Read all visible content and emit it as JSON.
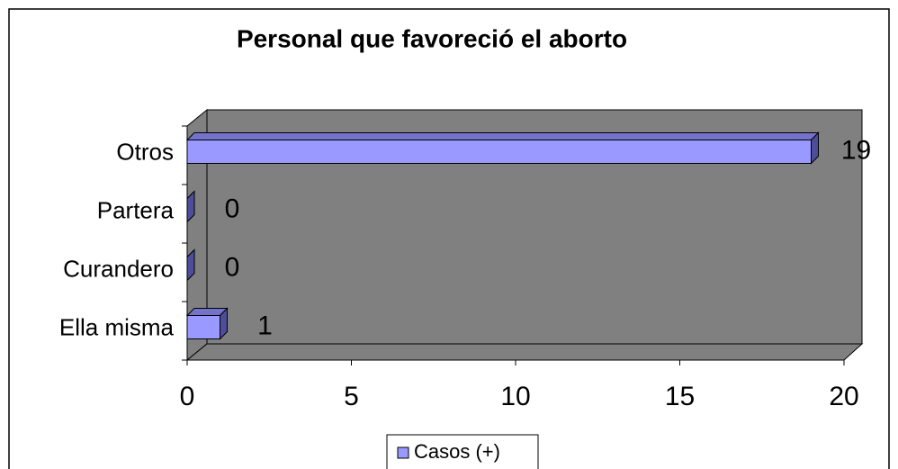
{
  "chart_data": {
    "type": "bar",
    "orientation": "horizontal",
    "title": "Personal que favoreció el aborto",
    "categories": [
      "Ella misma",
      "Curandero",
      "Partera",
      "Otros"
    ],
    "series": [
      {
        "name": "Casos (+)",
        "color": "#9999ff",
        "values": [
          1,
          0,
          0,
          19
        ]
      }
    ],
    "xlim": [
      0,
      20
    ],
    "xticks": [
      0,
      5,
      10,
      15,
      20
    ],
    "legend": "bottom"
  }
}
